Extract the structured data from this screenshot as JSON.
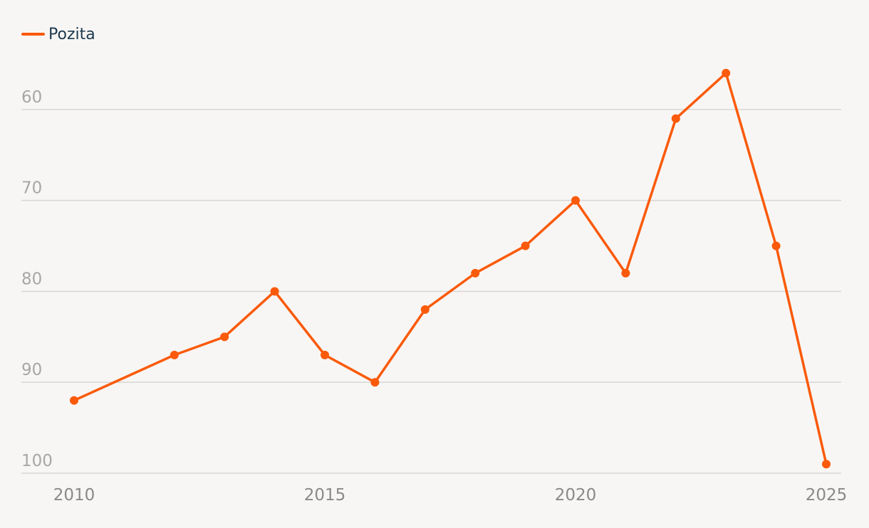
{
  "chart_data": {
    "type": "line",
    "title": "",
    "xlabel": "",
    "ylabel": "",
    "y_inverted": true,
    "ylim": [
      100,
      55
    ],
    "xlim": [
      2010,
      2025
    ],
    "y_ticks": [
      "60",
      "70",
      "80",
      "90",
      "100"
    ],
    "x_ticks": [
      "2010",
      "2015",
      "2020",
      "2025"
    ],
    "grid": "horizontal",
    "legend_position": "top-left",
    "series": [
      {
        "name": "Pozita",
        "color": "#fa5a0a",
        "x": [
          2010,
          2012,
          2013,
          2014,
          2015,
          2016,
          2017,
          2018,
          2019,
          2020,
          2021,
          2022,
          2023,
          2024,
          2025
        ],
        "y": [
          92,
          87,
          85,
          80,
          87,
          90,
          82,
          78,
          75,
          70,
          78,
          61,
          56,
          75,
          99
        ]
      }
    ]
  }
}
